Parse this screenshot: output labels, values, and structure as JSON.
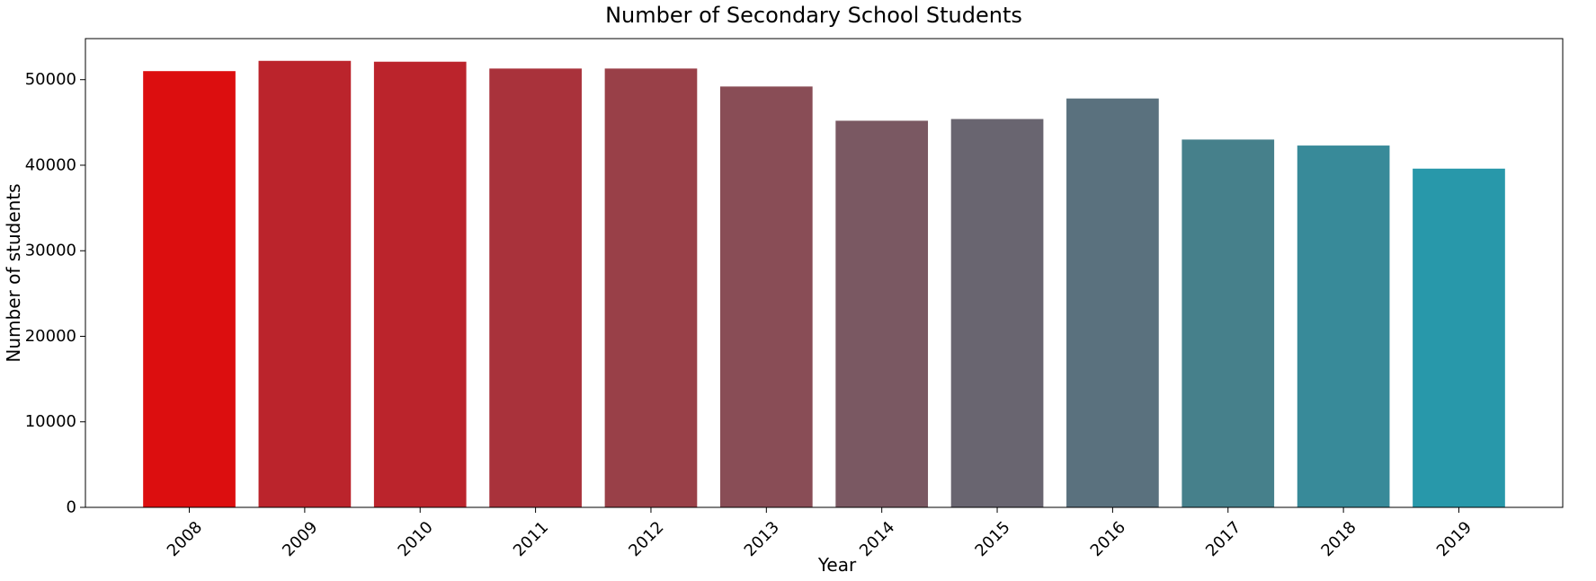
{
  "chart_data": {
    "type": "bar",
    "title": "Number of Secondary School Students",
    "xlabel": "Year",
    "ylabel": "Number of students",
    "categories": [
      "2008",
      "2009",
      "2010",
      "2011",
      "2012",
      "2013",
      "2014",
      "2015",
      "2016",
      "2017",
      "2018",
      "2019"
    ],
    "values": [
      51000,
      52200,
      52100,
      51300,
      51300,
      49200,
      45200,
      45400,
      47800,
      43000,
      42300,
      39600
    ],
    "colors": [
      "#dc0e0f",
      "#bb242c",
      "#bb242c",
      "#a9323b",
      "#994048",
      "#894d56",
      "#7a5862",
      "#696570",
      "#5a717e",
      "#46808b",
      "#388a99",
      "#2898aa"
    ],
    "ylim": [
      0,
      54800
    ],
    "yticks": [
      0,
      10000,
      20000,
      30000,
      40000,
      50000
    ],
    "grid": false,
    "legend": "none"
  }
}
